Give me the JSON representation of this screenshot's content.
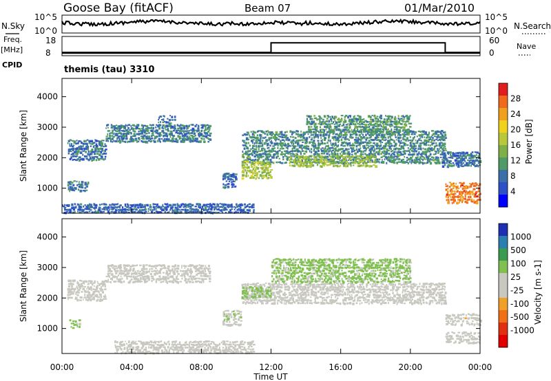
{
  "header": {
    "station": "Goose Bay (fitACF)",
    "beam": "Beam 07",
    "date": "01/Mar/2010"
  },
  "nsky": {
    "left_label": "N.Sky",
    "right_label": "N.Search",
    "left_ticks": [
      "10^5",
      "10^0"
    ],
    "right_ticks": [
      "10^5",
      "10^0"
    ]
  },
  "freq": {
    "label_line1": "Freq.",
    "label_line2": "[MHz]",
    "ticks": [
      "18",
      "8"
    ],
    "right_label": "Nave",
    "right_ticks": [
      "60",
      "0"
    ],
    "cpid_label": "CPID",
    "mode_text": "themis (tau) 3310"
  },
  "colors": {
    "power": [
      "#0000ff",
      "#2d4fc8",
      "#3a6fa8",
      "#4f9a66",
      "#7fb048",
      "#b8c83a",
      "#f0d21e",
      "#f0a01e",
      "#f06a1e",
      "#e01e1e"
    ],
    "velocity": [
      "#1f2fb4",
      "#2a7fb0",
      "#3a9a50",
      "#7fc050",
      "#c8c8c0",
      "#c8c8c0",
      "#f0a028",
      "#f07018",
      "#e03010",
      "#e00000"
    ]
  },
  "chart_data": [
    {
      "type": "heatmap",
      "name": "power-panel",
      "ylabel": "Slant Range [km]",
      "yticks": [
        "1000",
        "2000",
        "3000",
        "4000"
      ],
      "ylim": [
        180,
        4600
      ],
      "colorbar": {
        "label": "Power [dB]",
        "ticks": [
          "4",
          "8",
          "12",
          "16",
          "20",
          "24",
          "28"
        ],
        "range": [
          0,
          32
        ]
      },
      "bands": [
        {
          "t0": 0.3,
          "t1": 2.5,
          "r0": 1900,
          "r1": 2600,
          "level": 8
        },
        {
          "t0": 2.5,
          "t1": 8.5,
          "r0": 2500,
          "r1": 3100,
          "level": 9
        },
        {
          "t0": 5.5,
          "t1": 6.5,
          "r0": 3000,
          "r1": 3400,
          "level": 8
        },
        {
          "t0": 0.3,
          "t1": 1.5,
          "r0": 900,
          "r1": 1250,
          "level": 8
        },
        {
          "t0": 10.3,
          "t1": 22.0,
          "r0": 1800,
          "r1": 2900,
          "level": 10
        },
        {
          "t0": 14.0,
          "t1": 20.0,
          "r0": 2800,
          "r1": 3400,
          "level": 11
        },
        {
          "t0": 10.3,
          "t1": 12.0,
          "r0": 1300,
          "r1": 1900,
          "level": 17
        },
        {
          "t0": 13.0,
          "t1": 18.0,
          "r0": 1700,
          "r1": 2100,
          "level": 16
        },
        {
          "t0": 9.2,
          "t1": 10.0,
          "r0": 1000,
          "r1": 1500,
          "level": 8
        },
        {
          "t0": 21.8,
          "t1": 24.0,
          "r0": 1700,
          "r1": 2200,
          "level": 8
        },
        {
          "t0": 22.0,
          "t1": 24.0,
          "r0": 500,
          "r1": 1200,
          "level": 26
        },
        {
          "t0": 0.0,
          "t1": 11.0,
          "r0": 180,
          "r1": 500,
          "level": 7
        }
      ]
    },
    {
      "type": "heatmap",
      "name": "velocity-panel",
      "ylabel": "Slant Range [km]",
      "yticks": [
        "1000",
        "2000",
        "3000",
        "4000"
      ],
      "ylim": [
        180,
        4600
      ],
      "colorbar": {
        "label": "Velocity [m s-1]",
        "ticks": [
          "1000",
          "500",
          "100",
          "25",
          "-25",
          "-100",
          "-500",
          "-1000"
        ],
        "range": [
          -1200,
          1200
        ]
      },
      "bands": [
        {
          "t0": 0.3,
          "t1": 2.5,
          "r0": 1900,
          "r1": 2600,
          "level": 0
        },
        {
          "t0": 2.5,
          "t1": 8.5,
          "r0": 2500,
          "r1": 3100,
          "level": 0
        },
        {
          "t0": 10.3,
          "t1": 22.0,
          "r0": 1800,
          "r1": 2500,
          "level": 0
        },
        {
          "t0": 12.0,
          "t1": 20.0,
          "r0": 2500,
          "r1": 3300,
          "level": -300
        },
        {
          "t0": 10.3,
          "t1": 12.0,
          "r0": 2000,
          "r1": 2400,
          "level": -300
        },
        {
          "t0": 9.2,
          "t1": 10.3,
          "r0": 1100,
          "r1": 1600,
          "level": -200
        },
        {
          "t0": 0.3,
          "t1": 1.0,
          "r0": 1000,
          "r1": 1300,
          "level": -300
        },
        {
          "t0": 22.0,
          "t1": 24.0,
          "r0": 1100,
          "r1": 1500,
          "level": 150
        },
        {
          "t0": 22.0,
          "t1": 24.0,
          "r0": 500,
          "r1": 900,
          "level": 0
        },
        {
          "t0": 3.0,
          "t1": 11.0,
          "r0": 180,
          "r1": 600,
          "level": 60
        }
      ]
    }
  ],
  "xaxis": {
    "label": "Time UT",
    "ticks": [
      "00:00",
      "04:00",
      "08:00",
      "12:00",
      "16:00",
      "20:00",
      "00:00"
    ],
    "range": [
      0,
      24
    ]
  },
  "freq_series": {
    "t": [
      0,
      12,
      12,
      22,
      22,
      24
    ],
    "values": [
      8,
      8,
      14,
      14,
      8,
      8
    ]
  }
}
